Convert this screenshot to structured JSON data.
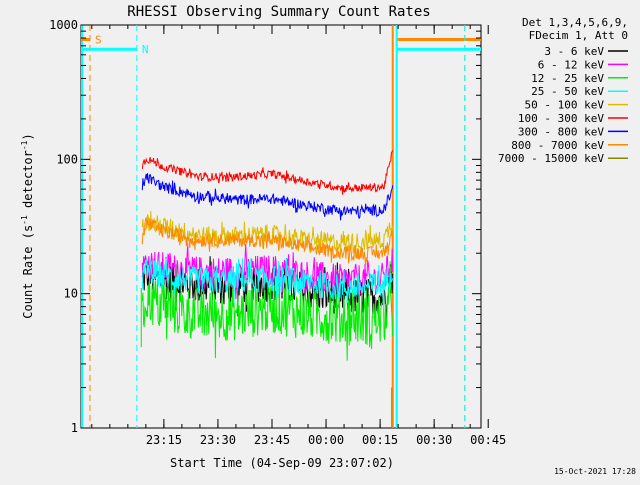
{
  "chart_data": {
    "type": "line",
    "title": "RHESSI Observing Summary Count Rates",
    "xlabel": "Start Time (04-Sep-09 23:07:02)",
    "ylabel_main": "Count Rate (s",
    "ylabel_sup1": "-1",
    "ylabel_mid": " detector",
    "ylabel_sup2": "-1",
    "ylabel_end": ")",
    "y_scale": "log",
    "ylim": [
      1,
      1000
    ],
    "xlim_min": [
      -8,
      103
    ],
    "y_ticks": [
      {
        "v": 1,
        "label": "1"
      },
      {
        "v": 10,
        "label": "10"
      },
      {
        "v": 100,
        "label": "100"
      },
      {
        "v": 1000,
        "label": "1000"
      }
    ],
    "x_ticks": [
      {
        "v": 15,
        "label": "23:15"
      },
      {
        "v": 30,
        "label": "23:30"
      },
      {
        "v": 45,
        "label": "23:45"
      },
      {
        "v": 60,
        "label": "00:00"
      },
      {
        "v": 75,
        "label": "00:15"
      },
      {
        "v": 90,
        "label": "00:30"
      },
      {
        "v": 105,
        "label": "00:45"
      }
    ],
    "legend_header": [
      "Det 1,3,4,5,6,9,",
      "FDecim 1, Att 0"
    ],
    "data_start_min": 9,
    "data_end_min": 78.5,
    "night_start_min": 78.5,
    "series": [
      {
        "name": "3 - 6 keV",
        "color": "#000000",
        "profile": [
          [
            9,
            12
          ],
          [
            10,
            14
          ],
          [
            15,
            12.5
          ],
          [
            25,
            11.5
          ],
          [
            35,
            11.5
          ],
          [
            45,
            12
          ],
          [
            55,
            10.5
          ],
          [
            65,
            9.5
          ],
          [
            76,
            9.5
          ],
          [
            78.5,
            14
          ]
        ],
        "noise": 0.14
      },
      {
        "name": "6 - 12 keV",
        "color": "#ff00ff",
        "profile": [
          [
            9,
            15
          ],
          [
            10,
            17
          ],
          [
            15,
            15.5
          ],
          [
            25,
            14.5
          ],
          [
            35,
            14.5
          ],
          [
            45,
            15
          ],
          [
            55,
            13.5
          ],
          [
            65,
            12.5
          ],
          [
            76,
            13
          ],
          [
            78.5,
            18
          ]
        ],
        "noise": 0.12
      },
      {
        "name": "12 - 25 keV",
        "color": "#00ee00",
        "profile": [
          [
            9,
            6
          ],
          [
            10,
            9.5
          ],
          [
            15,
            8
          ],
          [
            25,
            7
          ],
          [
            35,
            7
          ],
          [
            45,
            8
          ],
          [
            55,
            7
          ],
          [
            65,
            6.5
          ],
          [
            76,
            6.5
          ],
          [
            78.5,
            9
          ]
        ],
        "noise": 0.2
      },
      {
        "name": "25 - 50 keV",
        "color": "#00ffff",
        "profile": [
          [
            9,
            13
          ],
          [
            10,
            15
          ],
          [
            15,
            13.5
          ],
          [
            25,
            12.5
          ],
          [
            35,
            12.5
          ],
          [
            45,
            13
          ],
          [
            55,
            12
          ],
          [
            65,
            11
          ],
          [
            76,
            11.5
          ],
          [
            78.5,
            16
          ]
        ],
        "noise": 0.1
      },
      {
        "name": "50 - 100 keV",
        "color": "#ddbb00",
        "profile": [
          [
            9,
            31
          ],
          [
            10,
            34
          ],
          [
            15,
            32
          ],
          [
            25,
            27
          ],
          [
            35,
            27
          ],
          [
            45,
            27.5
          ],
          [
            55,
            25
          ],
          [
            65,
            24
          ],
          [
            76,
            25
          ],
          [
            78.5,
            35
          ]
        ],
        "noise": 0.07
      },
      {
        "name": "100 - 300 keV",
        "color": "#ff0000",
        "profile": [
          [
            9,
            90
          ],
          [
            10,
            102
          ],
          [
            15,
            88
          ],
          [
            25,
            74
          ],
          [
            35,
            74
          ],
          [
            45,
            78
          ],
          [
            55,
            68
          ],
          [
            65,
            61
          ],
          [
            76,
            62
          ],
          [
            78.5,
            115
          ]
        ],
        "noise": 0.03
      },
      {
        "name": "300 - 800 keV",
        "color": "#0000ff",
        "profile": [
          [
            9,
            62
          ],
          [
            10,
            74
          ],
          [
            15,
            62
          ],
          [
            25,
            53
          ],
          [
            35,
            50
          ],
          [
            45,
            51
          ],
          [
            55,
            45
          ],
          [
            65,
            41
          ],
          [
            76,
            42
          ],
          [
            78.5,
            60
          ]
        ],
        "noise": 0.04
      },
      {
        "name": "800 - 7000 keV",
        "color": "#ff8800",
        "profile": [
          [
            9,
            26
          ],
          [
            10,
            34
          ],
          [
            15,
            29
          ],
          [
            25,
            25
          ],
          [
            35,
            25
          ],
          [
            45,
            25
          ],
          [
            55,
            22
          ],
          [
            65,
            20
          ],
          [
            76,
            20
          ],
          [
            78.5,
            28
          ]
        ],
        "noise": 0.05
      },
      {
        "name": "7000 - 15000 keV",
        "color": "#888800",
        "profile": [],
        "noise": 0
      }
    ],
    "flag_lines": [
      {
        "label": "S",
        "color": "#ff8800",
        "x": -5.5,
        "level": 780
      },
      {
        "label": "N",
        "color": "#00ffff",
        "x": 7.5,
        "level": 660
      }
    ],
    "flag_right": [
      {
        "color": "#ff8800",
        "x0": 79.5,
        "x1": 98.5,
        "level": 780
      },
      {
        "color": "#00ffff",
        "x0": 79.5,
        "x1": 98.5,
        "level": 660
      }
    ],
    "footer_date": "15-Oct-2021 17:28"
  }
}
